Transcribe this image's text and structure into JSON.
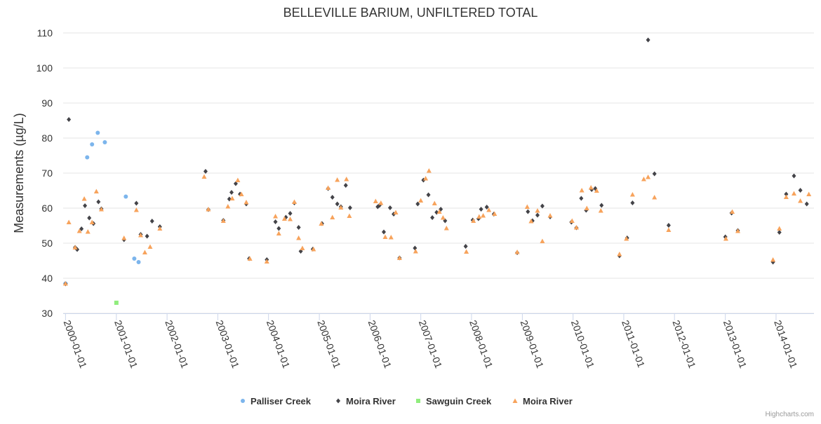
{
  "chart_data": {
    "type": "scatter",
    "title": "BELLEVILLE BARIUM, UNFILTERED TOTAL",
    "xlabel": "",
    "ylabel": "Measurements (µg/L)",
    "ylim": [
      30,
      110
    ],
    "yticks": [
      30,
      40,
      50,
      60,
      70,
      80,
      90,
      100,
      110
    ],
    "xlim": [
      "1999-12-15",
      "2014-10-01"
    ],
    "xticks": [
      "2000-01-01",
      "2001-01-01",
      "2002-01-01",
      "2003-01-01",
      "2004-01-01",
      "2005-01-01",
      "2006-01-01",
      "2007-01-01",
      "2008-01-01",
      "2009-01-01",
      "2010-01-01",
      "2011-01-01",
      "2012-01-01",
      "2013-01-01",
      "2014-01-01"
    ],
    "grid": "horizontal",
    "legend_position": "bottom-center",
    "credits": "Highcharts.com",
    "series": [
      {
        "name": "Palliser Creek",
        "marker": "circle",
        "color": "#7cb5ec",
        "points": [
          [
            "2000-01-01",
            38.5
          ],
          [
            "2000-06-05",
            74.5
          ],
          [
            "2000-07-10",
            78.2
          ],
          [
            "2000-08-20",
            81.5
          ],
          [
            "2000-10-10",
            78.8
          ],
          [
            "2001-03-10",
            63.3
          ],
          [
            "2001-05-10",
            45.6
          ],
          [
            "2001-06-10",
            44.6
          ]
        ]
      },
      {
        "name": "Moira River",
        "marker": "diamond",
        "color": "#434348",
        "points": [
          [
            "2000-01-01",
            38.4
          ],
          [
            "2000-01-25",
            85.3
          ],
          [
            "2000-03-10",
            48.8
          ],
          [
            "2000-03-25",
            48.2
          ],
          [
            "2000-04-25",
            54.1
          ],
          [
            "2000-05-20",
            60.7
          ],
          [
            "2000-06-20",
            57.2
          ],
          [
            "2000-07-20",
            55.6
          ],
          [
            "2000-08-25",
            61.8
          ],
          [
            "2000-09-15",
            59.8
          ],
          [
            "2001-02-25",
            51.0
          ],
          [
            "2001-05-25",
            61.4
          ],
          [
            "2001-06-25",
            52.5
          ],
          [
            "2001-08-10",
            52.0
          ],
          [
            "2001-09-15",
            56.3
          ],
          [
            "2001-11-10",
            54.7
          ],
          [
            "2002-10-05",
            70.5
          ],
          [
            "2002-10-25",
            59.6
          ],
          [
            "2003-02-10",
            56.5
          ],
          [
            "2003-03-25",
            62.6
          ],
          [
            "2003-04-10",
            64.5
          ],
          [
            "2003-05-10",
            67.0
          ],
          [
            "2003-06-10",
            64.0
          ],
          [
            "2003-07-25",
            61.2
          ],
          [
            "2003-08-15",
            45.6
          ],
          [
            "2003-12-20",
            45.3
          ],
          [
            "2004-02-20",
            56.1
          ],
          [
            "2004-03-15",
            54.2
          ],
          [
            "2004-05-05",
            57.4
          ],
          [
            "2004-06-05",
            58.5
          ],
          [
            "2004-07-05",
            61.5
          ],
          [
            "2004-08-05",
            54.5
          ],
          [
            "2004-08-20",
            47.7
          ],
          [
            "2004-11-15",
            48.3
          ],
          [
            "2005-01-20",
            55.6
          ],
          [
            "2005-03-05",
            65.6
          ],
          [
            "2005-04-05",
            63.1
          ],
          [
            "2005-05-10",
            61.2
          ],
          [
            "2005-06-05",
            60.4
          ],
          [
            "2005-07-10",
            66.5
          ],
          [
            "2005-08-10",
            60.1
          ],
          [
            "2006-02-25",
            60.4
          ],
          [
            "2006-03-10",
            60.8
          ],
          [
            "2006-04-10",
            53.2
          ],
          [
            "2006-05-25",
            60.1
          ],
          [
            "2006-06-20",
            58.3
          ],
          [
            "2006-08-01",
            45.8
          ],
          [
            "2006-11-20",
            48.6
          ],
          [
            "2006-12-10",
            61.2
          ],
          [
            "2007-01-20",
            68.0
          ],
          [
            "2007-02-25",
            63.8
          ],
          [
            "2007-03-25",
            57.3
          ],
          [
            "2007-04-25",
            58.8
          ],
          [
            "2007-05-25",
            59.7
          ],
          [
            "2007-06-25",
            56.4
          ],
          [
            "2007-11-20",
            49.1
          ],
          [
            "2008-01-10",
            56.6
          ],
          [
            "2008-02-20",
            57.0
          ],
          [
            "2008-03-10",
            59.7
          ],
          [
            "2008-04-20",
            60.3
          ],
          [
            "2008-06-10",
            58.3
          ],
          [
            "2008-11-25",
            47.3
          ],
          [
            "2009-02-10",
            59.0
          ],
          [
            "2009-03-15",
            56.4
          ],
          [
            "2009-04-20",
            58.0
          ],
          [
            "2009-05-25",
            60.6
          ],
          [
            "2009-07-20",
            57.5
          ],
          [
            "2009-12-20",
            56.0
          ],
          [
            "2010-01-25",
            54.4
          ],
          [
            "2010-03-01",
            62.8
          ],
          [
            "2010-04-05",
            59.4
          ],
          [
            "2010-05-15",
            65.3
          ],
          [
            "2010-06-10",
            65.6
          ],
          [
            "2010-07-25",
            60.8
          ],
          [
            "2010-12-01",
            46.4
          ],
          [
            "2011-01-25",
            51.5
          ],
          [
            "2011-03-05",
            61.5
          ],
          [
            "2011-06-25",
            108.0
          ],
          [
            "2011-08-10",
            69.8
          ],
          [
            "2011-11-20",
            55.1
          ],
          [
            "2013-01-01",
            51.8
          ],
          [
            "2013-02-15",
            58.6
          ],
          [
            "2013-04-01",
            53.6
          ],
          [
            "2013-12-10",
            44.6
          ],
          [
            "2014-01-25",
            53.1
          ],
          [
            "2014-03-15",
            64.0
          ],
          [
            "2014-05-10",
            69.2
          ],
          [
            "2014-06-25",
            65.1
          ],
          [
            "2014-08-10",
            61.2
          ]
        ]
      },
      {
        "name": "Sawguin Creek",
        "marker": "square",
        "color": "#90ed7d",
        "points": [
          [
            "2001-01-01",
            33.0
          ]
        ]
      },
      {
        "name": "Moira River",
        "marker": "triangle",
        "color": "#f7a35c",
        "points": [
          [
            "2000-01-01",
            38.5
          ],
          [
            "2000-01-25",
            56.0
          ],
          [
            "2000-03-10",
            48.8
          ],
          [
            "2000-04-10",
            53.5
          ],
          [
            "2000-05-15",
            62.7
          ],
          [
            "2000-06-10",
            53.3
          ],
          [
            "2000-07-10",
            56.0
          ],
          [
            "2000-08-10",
            64.8
          ],
          [
            "2000-09-15",
            59.7
          ],
          [
            "2001-02-25",
            51.5
          ],
          [
            "2001-05-25",
            59.5
          ],
          [
            "2001-06-25",
            52.3
          ],
          [
            "2001-07-25",
            47.4
          ],
          [
            "2001-09-01",
            49.0
          ],
          [
            "2001-11-10",
            54.2
          ],
          [
            "2002-09-25",
            69.0
          ],
          [
            "2002-10-25",
            59.7
          ],
          [
            "2003-02-10",
            56.4
          ],
          [
            "2003-03-15",
            60.5
          ],
          [
            "2003-04-15",
            62.8
          ],
          [
            "2003-05-25",
            68.0
          ],
          [
            "2003-06-20",
            64.0
          ],
          [
            "2003-07-25",
            61.7
          ],
          [
            "2003-08-20",
            45.6
          ],
          [
            "2003-12-20",
            44.8
          ],
          [
            "2004-02-20",
            57.7
          ],
          [
            "2004-03-15",
            52.8
          ],
          [
            "2004-04-25",
            57.0
          ],
          [
            "2004-06-05",
            56.9
          ],
          [
            "2004-07-05",
            61.8
          ],
          [
            "2004-08-05",
            51.5
          ],
          [
            "2004-09-01",
            48.6
          ],
          [
            "2004-11-20",
            48.3
          ],
          [
            "2005-01-15",
            55.6
          ],
          [
            "2005-03-05",
            65.8
          ],
          [
            "2005-04-05",
            57.4
          ],
          [
            "2005-05-10",
            68.1
          ],
          [
            "2005-06-05",
            60.2
          ],
          [
            "2005-07-15",
            68.3
          ],
          [
            "2005-08-05",
            57.8
          ],
          [
            "2006-02-10",
            62.0
          ],
          [
            "2006-03-20",
            61.5
          ],
          [
            "2006-04-20",
            51.8
          ],
          [
            "2006-06-01",
            51.7
          ],
          [
            "2006-07-05",
            58.8
          ],
          [
            "2006-08-01",
            45.8
          ],
          [
            "2006-11-25",
            47.7
          ],
          [
            "2007-01-01",
            62.2
          ],
          [
            "2007-02-05",
            68.5
          ],
          [
            "2007-03-01",
            70.7
          ],
          [
            "2007-04-10",
            61.4
          ],
          [
            "2007-05-15",
            59.0
          ],
          [
            "2007-06-10",
            57.3
          ],
          [
            "2007-07-05",
            54.3
          ],
          [
            "2007-11-25",
            47.6
          ],
          [
            "2008-01-15",
            56.4
          ],
          [
            "2008-02-25",
            57.6
          ],
          [
            "2008-03-25",
            57.9
          ],
          [
            "2008-05-05",
            59.5
          ],
          [
            "2008-06-15",
            58.4
          ],
          [
            "2008-11-25",
            47.5
          ],
          [
            "2009-02-05",
            60.4
          ],
          [
            "2009-03-05",
            56.3
          ],
          [
            "2009-04-20",
            59.3
          ],
          [
            "2009-05-25",
            50.6
          ],
          [
            "2009-07-20",
            57.9
          ],
          [
            "2009-12-25",
            56.4
          ],
          [
            "2010-01-25",
            54.5
          ],
          [
            "2010-03-05",
            65.1
          ],
          [
            "2010-04-10",
            60.0
          ],
          [
            "2010-05-10",
            65.9
          ],
          [
            "2010-06-20",
            65.0
          ],
          [
            "2010-07-20",
            59.3
          ],
          [
            "2010-12-01",
            46.9
          ],
          [
            "2011-01-20",
            51.3
          ],
          [
            "2011-03-05",
            63.9
          ],
          [
            "2011-05-25",
            68.3
          ],
          [
            "2011-06-25",
            68.9
          ],
          [
            "2011-08-10",
            63.1
          ],
          [
            "2011-11-20",
            53.8
          ],
          [
            "2013-01-05",
            51.3
          ],
          [
            "2013-02-20",
            59.0
          ],
          [
            "2013-04-01",
            53.5
          ],
          [
            "2013-12-10",
            45.3
          ],
          [
            "2014-01-25",
            54.2
          ],
          [
            "2014-03-15",
            63.2
          ],
          [
            "2014-05-10",
            64.2
          ],
          [
            "2014-06-25",
            62.1
          ],
          [
            "2014-08-25",
            64.0
          ]
        ]
      }
    ]
  }
}
